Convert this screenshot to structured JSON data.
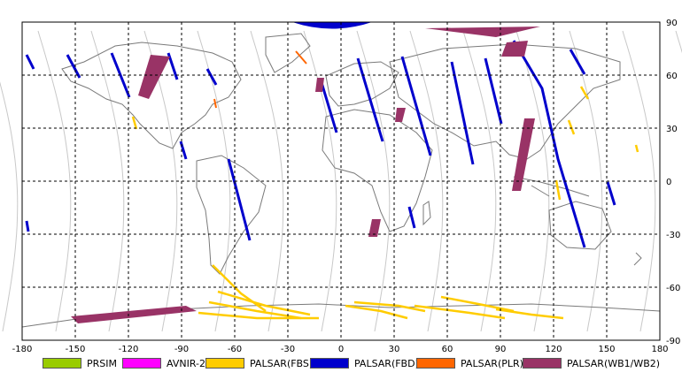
{
  "map": {
    "x_ticks": [
      "-180",
      "-150",
      "-120",
      "-90",
      "-60",
      "-30",
      "0",
      "30",
      "60",
      "90",
      "120",
      "150",
      "180"
    ],
    "y_ticks": [
      "90",
      "60",
      "30",
      "0",
      "-30",
      "-60",
      "-90"
    ]
  },
  "legend": [
    {
      "label": "PRSIM",
      "color": "#99cc00"
    },
    {
      "label": "AVNIR-2",
      "color": "#ff00ff"
    },
    {
      "label": "PALSAR(FBS)",
      "color": "#ffcc00"
    },
    {
      "label": "PALSAR(FBD)",
      "color": "#0000cc"
    },
    {
      "label": "PALSAR(PLR)",
      "color": "#ff6600"
    },
    {
      "label": "PALSAR(WB1/WB2)",
      "color": "#993366"
    }
  ],
  "colors": {
    "grid": "#000000",
    "coast": "#7a7a7a",
    "orbit": "#c8c8c8"
  }
}
